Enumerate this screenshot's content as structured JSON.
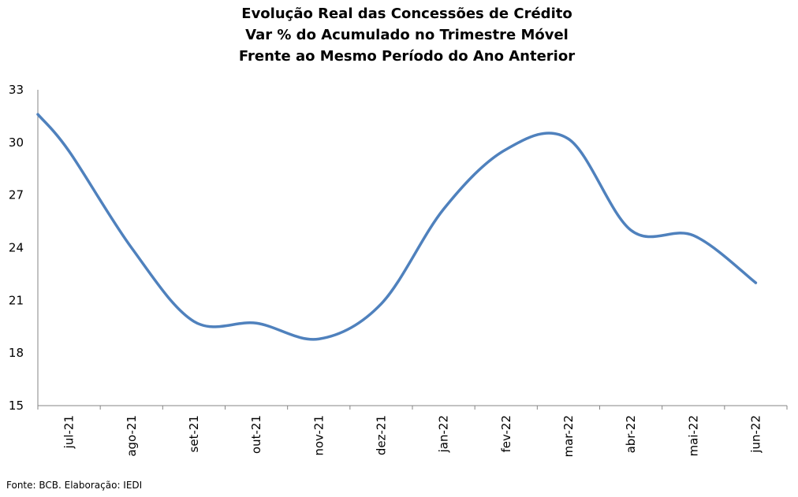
{
  "chart_data": {
    "type": "line",
    "title_lines": [
      "Evolução Real das Concessões de Crédito",
      "Var % do Acumulado no Trimestre Móvel",
      "Frente ao Mesmo Período do Ano Anterior"
    ],
    "categories": [
      "jul-21",
      "ago-21",
      "set-21",
      "out-21",
      "nov-21",
      "dez-21",
      "jan-22",
      "fev-22",
      "mar-22",
      "abr-22",
      "mai-22",
      "jun-22"
    ],
    "series": [
      {
        "values": [
          29.5,
          24.0,
          19.8,
          19.7,
          18.8,
          20.8,
          26.2,
          29.6,
          30.2,
          25.0,
          24.7,
          22.0
        ]
      }
    ],
    "x_start_value": 31.6,
    "ylim": [
      15,
      33
    ],
    "yticks": [
      15,
      18,
      21,
      24,
      27,
      30,
      33
    ],
    "line_color": "#4f81bd",
    "axis_color": "#868686",
    "grid": false,
    "legend": "none"
  },
  "source_text": "Fonte: BCB. Elaboração: IEDI"
}
